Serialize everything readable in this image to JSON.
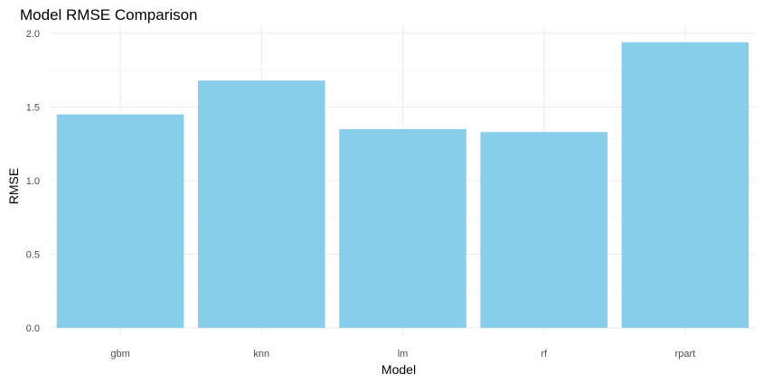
{
  "chart_data": {
    "type": "bar",
    "title": "Model RMSE Comparison",
    "xlabel": "Model",
    "ylabel": "RMSE",
    "categories": [
      "gbm",
      "knn",
      "lm",
      "rf",
      "rpart"
    ],
    "values": [
      1.45,
      1.68,
      1.35,
      1.33,
      1.94
    ],
    "ylim": [
      0,
      2.05
    ],
    "yticks": [
      0.0,
      0.5,
      1.0,
      1.5,
      2.0
    ],
    "ytick_labels": [
      "0.0",
      "0.5",
      "1.0",
      "1.5",
      "2.0"
    ],
    "grid": true,
    "legend": "none",
    "bar_color": "#87CEEB"
  }
}
